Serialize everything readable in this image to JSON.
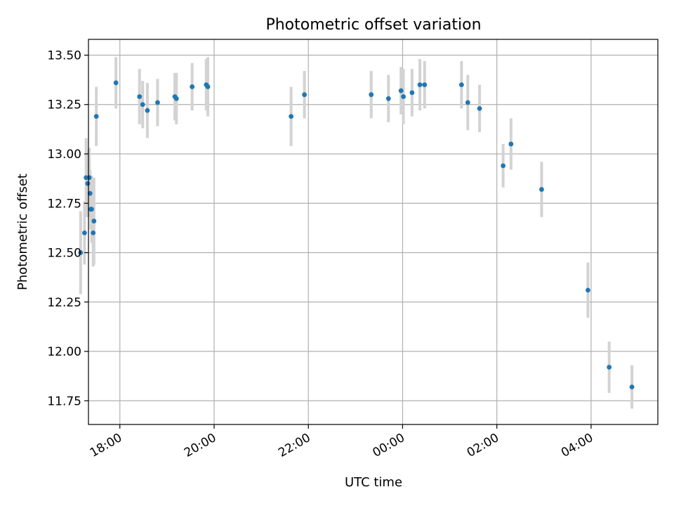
{
  "chart_data": {
    "type": "scatter",
    "title": "Photometric offset variation",
    "xlabel": "UTC time",
    "ylabel": "Photometric offset",
    "grid": true,
    "xlim": [
      "17:20",
      "05:25"
    ],
    "ylim": [
      11.63,
      13.58
    ],
    "x_ticks": [
      "18:00",
      "20:00",
      "22:00",
      "00:00",
      "02:00",
      "04:00"
    ],
    "y_ticks": [
      "11.75",
      "12.00",
      "12.25",
      "12.50",
      "12.75",
      "13.00",
      "13.25",
      "13.50"
    ],
    "colors": {
      "point": "#1f77b4",
      "error_bar": "#d3d3d3"
    },
    "points": [
      {
        "x": "17:10",
        "y": 12.5,
        "err": 0.21
      },
      {
        "x": "17:15",
        "y": 12.6,
        "err": 0.16
      },
      {
        "x": "17:17",
        "y": 12.88,
        "err": 0.2
      },
      {
        "x": "17:19",
        "y": 12.85,
        "err": 0.17
      },
      {
        "x": "17:21",
        "y": 12.88,
        "err": 0.15
      },
      {
        "x": "17:22",
        "y": 12.8,
        "err": 0.12
      },
      {
        "x": "17:23",
        "y": 12.72,
        "err": 0.1
      },
      {
        "x": "17:24",
        "y": 12.72,
        "err": 0.17
      },
      {
        "x": "17:26",
        "y": 12.6,
        "err": 0.17
      },
      {
        "x": "17:27",
        "y": 12.66,
        "err": 0.22
      },
      {
        "x": "17:30",
        "y": 13.19,
        "err": 0.15
      },
      {
        "x": "17:55",
        "y": 13.36,
        "err": 0.13
      },
      {
        "x": "18:25",
        "y": 13.29,
        "err": 0.14
      },
      {
        "x": "18:29",
        "y": 13.25,
        "err": 0.12
      },
      {
        "x": "18:35",
        "y": 13.22,
        "err": 0.14
      },
      {
        "x": "18:48",
        "y": 13.26,
        "err": 0.12
      },
      {
        "x": "19:10",
        "y": 13.29,
        "err": 0.12
      },
      {
        "x": "19:12",
        "y": 13.28,
        "err": 0.13
      },
      {
        "x": "19:32",
        "y": 13.34,
        "err": 0.12
      },
      {
        "x": "19:50",
        "y": 13.35,
        "err": 0.13
      },
      {
        "x": "19:52",
        "y": 13.34,
        "err": 0.15
      },
      {
        "x": "21:38",
        "y": 13.19,
        "err": 0.15
      },
      {
        "x": "21:55",
        "y": 13.3,
        "err": 0.12
      },
      {
        "x": "23:20",
        "y": 13.3,
        "err": 0.12
      },
      {
        "x": "23:42",
        "y": 13.28,
        "err": 0.12
      },
      {
        "x": "23:58",
        "y": 13.32,
        "err": 0.12
      },
      {
        "x": "00:01",
        "y": 13.29,
        "err": 0.14
      },
      {
        "x": "00:12",
        "y": 13.31,
        "err": 0.12
      },
      {
        "x": "00:22",
        "y": 13.35,
        "err": 0.13
      },
      {
        "x": "00:28",
        "y": 13.35,
        "err": 0.12
      },
      {
        "x": "01:15",
        "y": 13.35,
        "err": 0.12
      },
      {
        "x": "01:23",
        "y": 13.26,
        "err": 0.14
      },
      {
        "x": "01:38",
        "y": 13.23,
        "err": 0.12
      },
      {
        "x": "02:08",
        "y": 12.94,
        "err": 0.11
      },
      {
        "x": "02:18",
        "y": 13.05,
        "err": 0.13
      },
      {
        "x": "02:57",
        "y": 12.82,
        "err": 0.14
      },
      {
        "x": "03:56",
        "y": 12.31,
        "err": 0.14
      },
      {
        "x": "04:23",
        "y": 11.92,
        "err": 0.13
      },
      {
        "x": "04:52",
        "y": 11.82,
        "err": 0.11
      }
    ]
  }
}
